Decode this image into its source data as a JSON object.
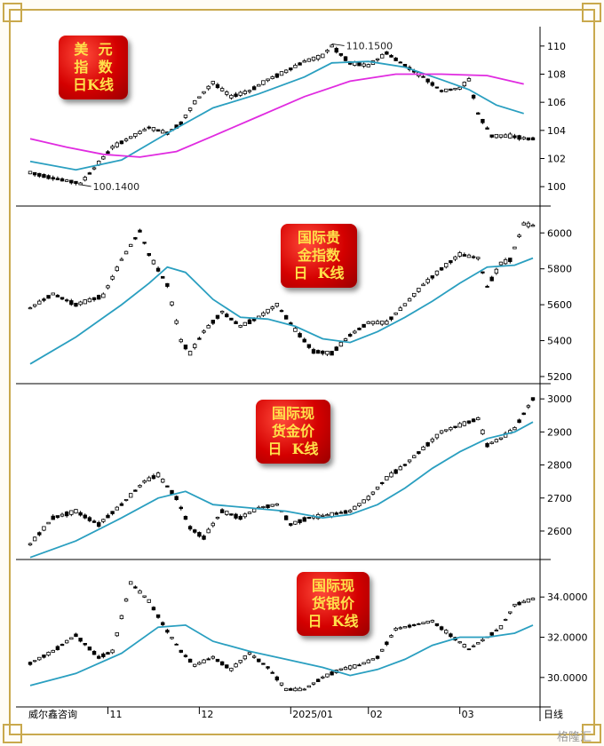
{
  "source_label": "威尔鑫咨询",
  "period_label": "日线",
  "watermark": "格隆汇",
  "x_axis": {
    "months": [
      "11",
      "12",
      "2025/01",
      "02",
      "03"
    ],
    "month_start_index": [
      17,
      37,
      57,
      74,
      94
    ]
  },
  "charts": [
    {
      "id": "usd",
      "badge_lines": [
        "美  元",
        "指  数",
        "日K线"
      ],
      "ylim": [
        99,
        111
      ],
      "yticks": [
        "110",
        "108",
        "106",
        "104",
        "102",
        "100"
      ],
      "ytick_values": [
        110,
        108,
        106,
        104,
        102,
        100
      ],
      "anchors": [
        [
          0,
          101.0
        ],
        [
          5,
          100.6
        ],
        [
          10,
          100.3
        ],
        [
          11,
          100.2
        ],
        [
          14,
          101.3
        ],
        [
          18,
          102.8
        ],
        [
          22,
          103.5
        ],
        [
          26,
          104.2
        ],
        [
          30,
          103.8
        ],
        [
          33,
          104.5
        ],
        [
          36,
          106.0
        ],
        [
          40,
          107.4
        ],
        [
          44,
          106.4
        ],
        [
          48,
          106.8
        ],
        [
          52,
          107.6
        ],
        [
          56,
          108.2
        ],
        [
          60,
          108.9
        ],
        [
          64,
          109.3
        ],
        [
          66,
          110.0
        ],
        [
          70,
          108.8
        ],
        [
          74,
          108.6
        ],
        [
          78,
          109.5
        ],
        [
          82,
          108.6
        ],
        [
          86,
          107.8
        ],
        [
          90,
          106.8
        ],
        [
          94,
          107.0
        ],
        [
          96,
          107.6
        ],
        [
          98,
          105.2
        ],
        [
          101,
          103.6
        ],
        [
          105,
          103.6
        ],
        [
          109,
          103.4
        ]
      ],
      "series": [
        {
          "name": "MA_short",
          "color": "#2a9fc0",
          "points": [
            [
              0,
              101.8
            ],
            [
              10,
              101.2
            ],
            [
              20,
              101.9
            ],
            [
              30,
              103.8
            ],
            [
              40,
              105.6
            ],
            [
              50,
              106.6
            ],
            [
              60,
              107.8
            ],
            [
              66,
              108.8
            ],
            [
              74,
              108.9
            ],
            [
              82,
              108.5
            ],
            [
              90,
              107.6
            ],
            [
              96,
              106.9
            ],
            [
              102,
              105.8
            ],
            [
              108,
              105.2
            ]
          ]
        },
        {
          "name": "MA_long",
          "color": "#e02be0",
          "points": [
            [
              0,
              103.4
            ],
            [
              8,
              102.8
            ],
            [
              16,
              102.3
            ],
            [
              24,
              102.1
            ],
            [
              32,
              102.5
            ],
            [
              40,
              103.6
            ],
            [
              50,
              105.0
            ],
            [
              60,
              106.4
            ],
            [
              70,
              107.5
            ],
            [
              80,
              108.0
            ],
            [
              90,
              108.0
            ],
            [
              100,
              107.9
            ],
            [
              108,
              107.3
            ]
          ]
        }
      ],
      "annotations": [
        {
          "text": "110.1500",
          "i": 66,
          "y": 110.15
        },
        {
          "text": "100.1400",
          "i": 11,
          "y": 100.14
        }
      ]
    },
    {
      "id": "intl-gold-index",
      "badge_lines": [
        "国际贵",
        "金指数",
        "日  K线"
      ],
      "ylim": [
        5190,
        6120
      ],
      "yticks": [
        "6000",
        "5800",
        "5600",
        "5400",
        "5200"
      ],
      "ytick_values": [
        6000,
        5800,
        5600,
        5400,
        5200
      ],
      "anchors": [
        [
          0,
          5580
        ],
        [
          5,
          5660
        ],
        [
          10,
          5600
        ],
        [
          16,
          5650
        ],
        [
          20,
          5850
        ],
        [
          24,
          6010
        ],
        [
          26,
          5880
        ],
        [
          30,
          5710
        ],
        [
          33,
          5400
        ],
        [
          35,
          5330
        ],
        [
          38,
          5450
        ],
        [
          42,
          5560
        ],
        [
          46,
          5480
        ],
        [
          50,
          5530
        ],
        [
          54,
          5600
        ],
        [
          58,
          5460
        ],
        [
          62,
          5340
        ],
        [
          66,
          5330
        ],
        [
          70,
          5430
        ],
        [
          74,
          5500
        ],
        [
          78,
          5500
        ],
        [
          82,
          5600
        ],
        [
          86,
          5710
        ],
        [
          90,
          5800
        ],
        [
          94,
          5880
        ],
        [
          98,
          5860
        ],
        [
          100,
          5700
        ],
        [
          103,
          5830
        ],
        [
          105,
          5850
        ],
        [
          108,
          6050
        ],
        [
          110,
          6040
        ]
      ],
      "series": [
        {
          "name": "MA",
          "color": "#2a9fc0",
          "points": [
            [
              0,
              5270
            ],
            [
              10,
              5420
            ],
            [
              20,
              5600
            ],
            [
              26,
              5720
            ],
            [
              30,
              5810
            ],
            [
              34,
              5780
            ],
            [
              40,
              5630
            ],
            [
              46,
              5530
            ],
            [
              52,
              5520
            ],
            [
              58,
              5480
            ],
            [
              64,
              5410
            ],
            [
              70,
              5390
            ],
            [
              76,
              5450
            ],
            [
              82,
              5530
            ],
            [
              88,
              5620
            ],
            [
              94,
              5720
            ],
            [
              100,
              5810
            ],
            [
              106,
              5820
            ],
            [
              110,
              5860
            ]
          ]
        }
      ],
      "annotations": []
    },
    {
      "id": "spot-gold",
      "badge_lines": [
        "国际现",
        "货金价",
        "日  K线"
      ],
      "ylim": [
        2530,
        3030
      ],
      "yticks": [
        "3000",
        "2900",
        "2800",
        "2700",
        "2600"
      ],
      "ytick_values": [
        3000,
        2900,
        2800,
        2700,
        2600
      ],
      "anchors": [
        [
          0,
          2560
        ],
        [
          5,
          2640
        ],
        [
          10,
          2660
        ],
        [
          15,
          2620
        ],
        [
          20,
          2680
        ],
        [
          25,
          2750
        ],
        [
          28,
          2770
        ],
        [
          32,
          2700
        ],
        [
          35,
          2610
        ],
        [
          38,
          2580
        ],
        [
          42,
          2660
        ],
        [
          46,
          2640
        ],
        [
          50,
          2670
        ],
        [
          54,
          2680
        ],
        [
          57,
          2620
        ],
        [
          61,
          2640
        ],
        [
          66,
          2650
        ],
        [
          70,
          2660
        ],
        [
          74,
          2700
        ],
        [
          78,
          2760
        ],
        [
          82,
          2800
        ],
        [
          86,
          2850
        ],
        [
          90,
          2900
        ],
        [
          94,
          2920
        ],
        [
          98,
          2940
        ],
        [
          100,
          2860
        ],
        [
          103,
          2880
        ],
        [
          106,
          2910
        ],
        [
          110,
          3000
        ]
      ],
      "series": [
        {
          "name": "MA",
          "color": "#2a9fc0",
          "points": [
            [
              0,
              2520
            ],
            [
              10,
              2570
            ],
            [
              20,
              2640
            ],
            [
              28,
              2700
            ],
            [
              34,
              2720
            ],
            [
              40,
              2680
            ],
            [
              48,
              2670
            ],
            [
              56,
              2660
            ],
            [
              64,
              2640
            ],
            [
              70,
              2650
            ],
            [
              76,
              2680
            ],
            [
              82,
              2730
            ],
            [
              88,
              2790
            ],
            [
              94,
              2840
            ],
            [
              100,
              2880
            ],
            [
              106,
              2900
            ],
            [
              110,
              2930
            ]
          ]
        }
      ],
      "annotations": []
    },
    {
      "id": "spot-silver",
      "badge_lines": [
        "国际现",
        "货银价",
        "日  K线"
      ],
      "ylim": [
        28.8,
        35.6
      ],
      "yticks": [
        "34.0000",
        "32.0000",
        "30.0000"
      ],
      "ytick_values": [
        34,
        32,
        30
      ],
      "anchors": [
        [
          0,
          30.7
        ],
        [
          5,
          31.3
        ],
        [
          10,
          32.1
        ],
        [
          15,
          31.0
        ],
        [
          18,
          31.3
        ],
        [
          22,
          34.7
        ],
        [
          26,
          33.8
        ],
        [
          30,
          32.3
        ],
        [
          33,
          31.3
        ],
        [
          36,
          30.6
        ],
        [
          40,
          31.0
        ],
        [
          44,
          30.4
        ],
        [
          48,
          31.2
        ],
        [
          52,
          30.5
        ],
        [
          56,
          29.4
        ],
        [
          60,
          29.4
        ],
        [
          64,
          30.0
        ],
        [
          68,
          30.4
        ],
        [
          72,
          30.6
        ],
        [
          76,
          31.0
        ],
        [
          80,
          32.4
        ],
        [
          84,
          32.6
        ],
        [
          88,
          32.8
        ],
        [
          92,
          32.1
        ],
        [
          96,
          31.4
        ],
        [
          100,
          32.0
        ],
        [
          103,
          32.5
        ],
        [
          106,
          33.6
        ],
        [
          110,
          33.9
        ]
      ],
      "series": [
        {
          "name": "MA",
          "color": "#2a9fc0",
          "points": [
            [
              0,
              29.6
            ],
            [
              10,
              30.2
            ],
            [
              20,
              31.2
            ],
            [
              28,
              32.5
            ],
            [
              34,
              32.6
            ],
            [
              40,
              31.8
            ],
            [
              48,
              31.3
            ],
            [
              56,
              30.9
            ],
            [
              64,
              30.5
            ],
            [
              70,
              30.1
            ],
            [
              76,
              30.4
            ],
            [
              82,
              30.9
            ],
            [
              88,
              31.6
            ],
            [
              94,
              32.0
            ],
            [
              100,
              32.0
            ],
            [
              106,
              32.2
            ],
            [
              110,
              32.6
            ]
          ]
        }
      ],
      "annotations": []
    }
  ]
}
